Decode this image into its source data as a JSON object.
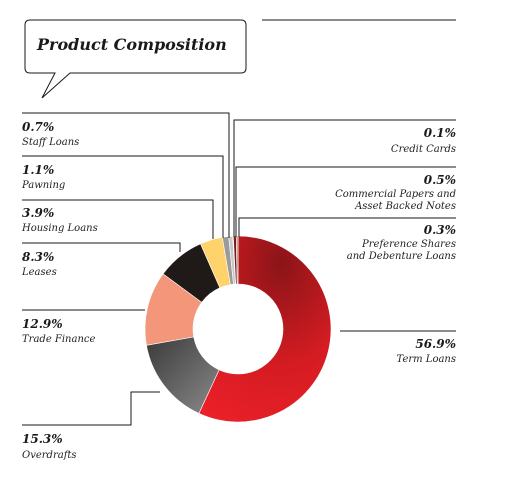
{
  "chart_data": {
    "type": "pie",
    "title": "Product Composition",
    "slices": [
      {
        "key": "term-loans",
        "label": "Term Loans",
        "value": 56.9,
        "pct_text": "56.9%",
        "color": "#e31e24"
      },
      {
        "key": "overdrafts",
        "label": "Overdrafts",
        "value": 15.3,
        "pct_text": "15.3%",
        "color": "#6b6b6b"
      },
      {
        "key": "trade-finance",
        "label": "Trade Finance",
        "value": 12.9,
        "pct_text": "12.9%",
        "color": "#f4967a"
      },
      {
        "key": "leases",
        "label": "Leases",
        "value": 8.3,
        "pct_text": "8.3%",
        "color": "#1f1a17"
      },
      {
        "key": "housing-loans",
        "label": "Housing Loans",
        "value": 3.9,
        "pct_text": "3.9%",
        "color": "#ffd36b"
      },
      {
        "key": "pawning",
        "label": "Pawning",
        "value": 1.1,
        "pct_text": "1.1%",
        "color": "#9b9b9b"
      },
      {
        "key": "staff-loans",
        "label": "Staff Loans",
        "value": 0.7,
        "pct_text": "0.7%",
        "color": "#c8c8c8"
      },
      {
        "key": "credit-cards",
        "label": "Credit Cards",
        "value": 0.1,
        "pct_text": "0.1%",
        "color": "#e8a08a"
      },
      {
        "key": "commercial-papers",
        "label": "Commercial Papers and Asset Backed Notes",
        "label_lines": [
          "Commercial Papers and",
          "Asset Backed Notes"
        ],
        "value": 0.5,
        "pct_text": "0.5%",
        "color": "#7a1a1a"
      },
      {
        "key": "preference-shares",
        "label": "Preference Shares and Debenture Loans",
        "label_lines": [
          "Preference Shares",
          "and Debenture Loans"
        ],
        "value": 0.3,
        "pct_text": "0.3%",
        "color": "#b08060"
      }
    ]
  }
}
